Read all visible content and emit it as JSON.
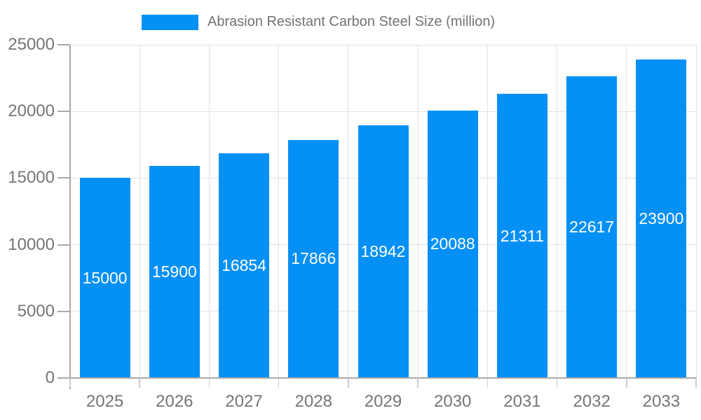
{
  "chart_data": {
    "type": "bar",
    "legend_label": "Abrasion Resistant Carbon Steel Size (million)",
    "legend_position": "top",
    "categories": [
      "2025",
      "2026",
      "2027",
      "2028",
      "2029",
      "2030",
      "2031",
      "2032",
      "2033"
    ],
    "series": [
      {
        "name": "Abrasion Resistant Carbon Steel Size (million)",
        "values": [
          15000,
          15900,
          16854,
          17866,
          18942,
          20088,
          21311,
          22617,
          23900
        ]
      }
    ],
    "value_labels_shown": true,
    "xlabel": "",
    "ylabel": "",
    "ylim": [
      0,
      25000
    ],
    "yticks": [
      0,
      5000,
      10000,
      15000,
      20000,
      25000
    ],
    "grid": true,
    "colors": {
      "bar": "#0590f5",
      "value_label": "#ffffff",
      "axis_label": "#757575",
      "legend_text": "#737373",
      "gridline": "#e2e2e2",
      "axis_line": "#a9a9a9",
      "minor_tick": "#cccccc",
      "background": "#ffffff"
    }
  }
}
